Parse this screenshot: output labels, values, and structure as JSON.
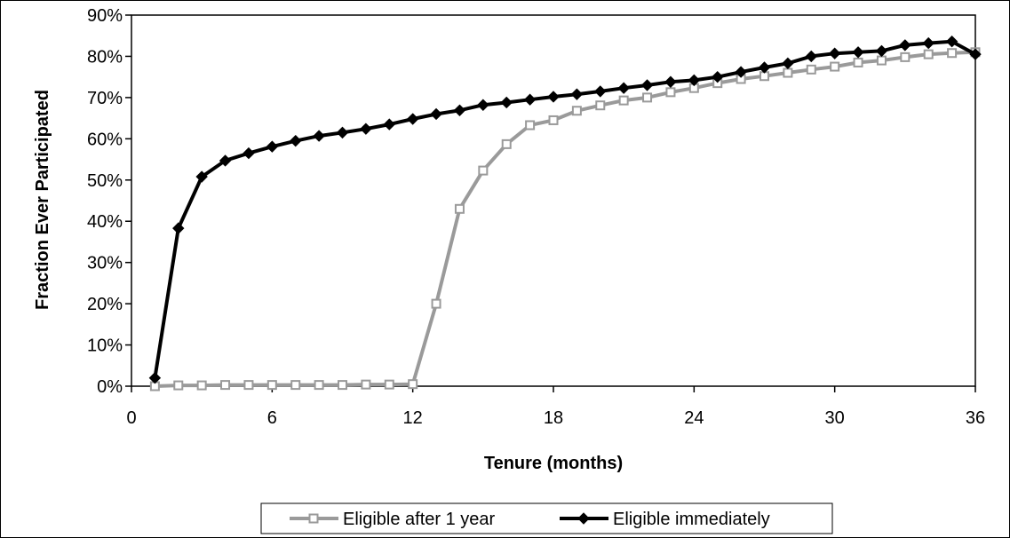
{
  "chart_data": {
    "type": "line",
    "title": "",
    "xlabel": "Tenure (months)",
    "ylabel": "Fraction Ever Participated",
    "xlim": [
      0,
      36
    ],
    "ylim": [
      0,
      0.9
    ],
    "x_ticks": [
      0,
      6,
      12,
      18,
      24,
      30,
      36
    ],
    "x_tick_labels": [
      "0",
      "6",
      "12",
      "18",
      "24",
      "30",
      "36"
    ],
    "y_ticks": [
      0,
      0.1,
      0.2,
      0.3,
      0.4,
      0.5,
      0.6,
      0.7,
      0.8,
      0.9
    ],
    "y_tick_labels": [
      "0%",
      "10%",
      "20%",
      "30%",
      "40%",
      "50%",
      "60%",
      "70%",
      "80%",
      "90%"
    ],
    "grid": false,
    "legend_position": "bottom",
    "x": [
      1,
      2,
      3,
      4,
      5,
      6,
      7,
      8,
      9,
      10,
      11,
      12,
      13,
      14,
      15,
      16,
      17,
      18,
      19,
      20,
      21,
      22,
      23,
      24,
      25,
      26,
      27,
      28,
      29,
      30,
      31,
      32,
      33,
      34,
      35,
      36
    ],
    "series": [
      {
        "name": "Eligible after 1 year",
        "color": "#9a9a9a",
        "marker": "square",
        "values": [
          0.0,
          0.002,
          0.002,
          0.003,
          0.003,
          0.003,
          0.003,
          0.003,
          0.003,
          0.004,
          0.004,
          0.005,
          0.2,
          0.43,
          0.523,
          0.587,
          0.633,
          0.645,
          0.668,
          0.681,
          0.693,
          0.7,
          0.713,
          0.723,
          0.735,
          0.745,
          0.752,
          0.76,
          0.768,
          0.775,
          0.785,
          0.79,
          0.798,
          0.805,
          0.808,
          0.81
        ]
      },
      {
        "name": "Eligible immediately",
        "color": "#000000",
        "marker": "diamond",
        "values": [
          0.02,
          0.383,
          0.508,
          0.547,
          0.565,
          0.581,
          0.595,
          0.607,
          0.615,
          0.624,
          0.635,
          0.648,
          0.66,
          0.669,
          0.682,
          0.688,
          0.695,
          0.702,
          0.708,
          0.715,
          0.723,
          0.73,
          0.738,
          0.742,
          0.75,
          0.762,
          0.773,
          0.783,
          0.8,
          0.807,
          0.81,
          0.813,
          0.827,
          0.832,
          0.836,
          0.805
        ]
      }
    ]
  }
}
